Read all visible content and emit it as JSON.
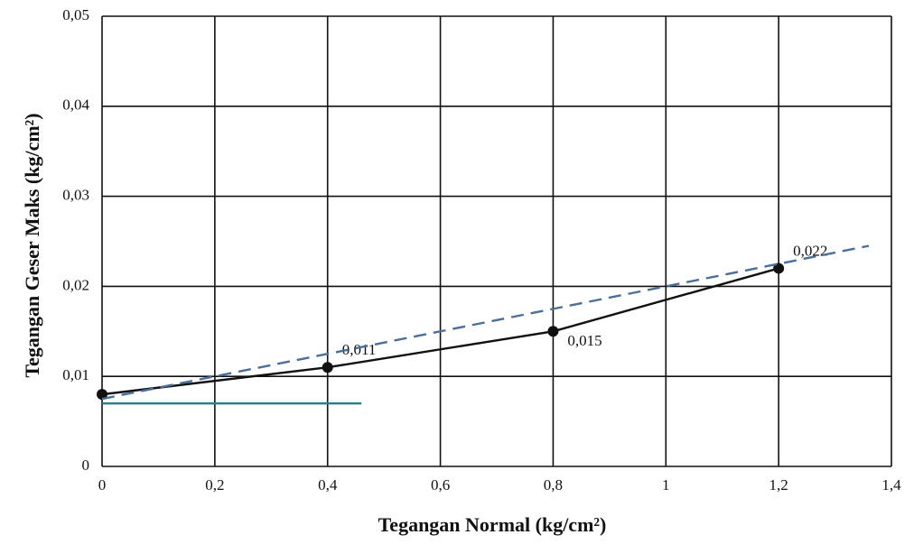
{
  "chart_data": {
    "type": "line",
    "xlabel": "Tegangan Normal (kg/cm²)",
    "ylabel": "Tegangan Geser Maks (kg/cm²)",
    "xlim": [
      0,
      1.4
    ],
    "ylim": [
      0,
      0.05
    ],
    "xticks": [
      0,
      {
        "value": 0.2,
        "label": "0,2"
      },
      {
        "value": 0.4,
        "label": "0,4"
      },
      {
        "value": 0.6,
        "label": "0,6"
      },
      {
        "value": 0.8,
        "label": "0,8"
      },
      1,
      {
        "value": 1.2,
        "label": "1,2"
      },
      {
        "value": 1.4,
        "label": "1,4"
      }
    ],
    "yticks": [
      0,
      {
        "value": 0.01,
        "label": "0,01"
      },
      {
        "value": 0.02,
        "label": "0,02"
      },
      {
        "value": 0.03,
        "label": "0,03"
      },
      {
        "value": 0.04,
        "label": "0,04"
      },
      {
        "value": 0.05,
        "label": "0,05"
      }
    ],
    "grid": true,
    "series": [
      {
        "color": "#111111",
        "style": "solid",
        "markers": true,
        "x": [
          0,
          0.4,
          0.8,
          1.2
        ],
        "values": [
          0.008,
          0.011,
          0.015,
          0.022
        ],
        "value_labels": [
          null,
          "0,011",
          "0,015",
          "0,022"
        ]
      },
      {
        "color": "#4a6f9a",
        "style": "dashed",
        "markers": false,
        "x": [
          0,
          1.36
        ],
        "values": [
          0.0075,
          0.0245
        ]
      },
      {
        "color": "#2a7a9a",
        "style": "solid",
        "markers": false,
        "x": [
          0,
          0.46
        ],
        "values": [
          0.007,
          0.007
        ]
      }
    ]
  }
}
